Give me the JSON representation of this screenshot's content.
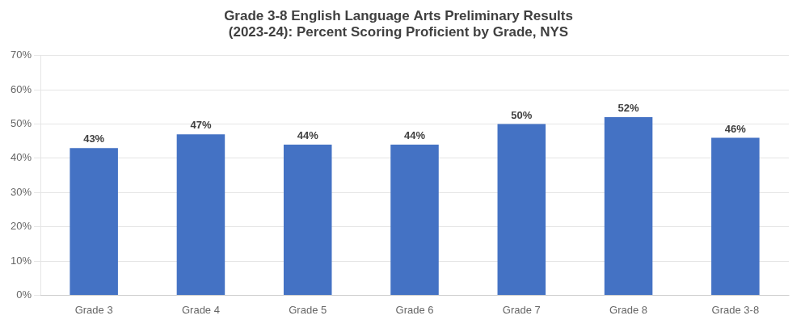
{
  "chart_data": {
    "type": "bar",
    "title": "Grade 3-8 English Language Arts Preliminary Results\n(2023-24): Percent Scoring Proficient by Grade, NYS",
    "categories": [
      "Grade 3",
      "Grade 4",
      "Grade 5",
      "Grade 6",
      "Grade 7",
      "Grade 8",
      "Grade 3-8"
    ],
    "values": [
      43,
      47,
      44,
      44,
      50,
      52,
      46
    ],
    "value_labels": [
      "43%",
      "47%",
      "44%",
      "44%",
      "50%",
      "52%",
      "46%"
    ],
    "data_labels": true,
    "color": "#4472C4",
    "ylim": [
      0,
      70
    ],
    "yticks": [
      {
        "value": 0,
        "label": "0%"
      },
      {
        "value": 10,
        "label": "10%"
      },
      {
        "value": 20,
        "label": "20%"
      },
      {
        "value": 30,
        "label": "30%"
      },
      {
        "value": 40,
        "label": "40%"
      },
      {
        "value": 50,
        "label": "50%"
      },
      {
        "value": 60,
        "label": "60%"
      },
      {
        "value": 70,
        "label": "70%"
      }
    ],
    "grid": true
  }
}
